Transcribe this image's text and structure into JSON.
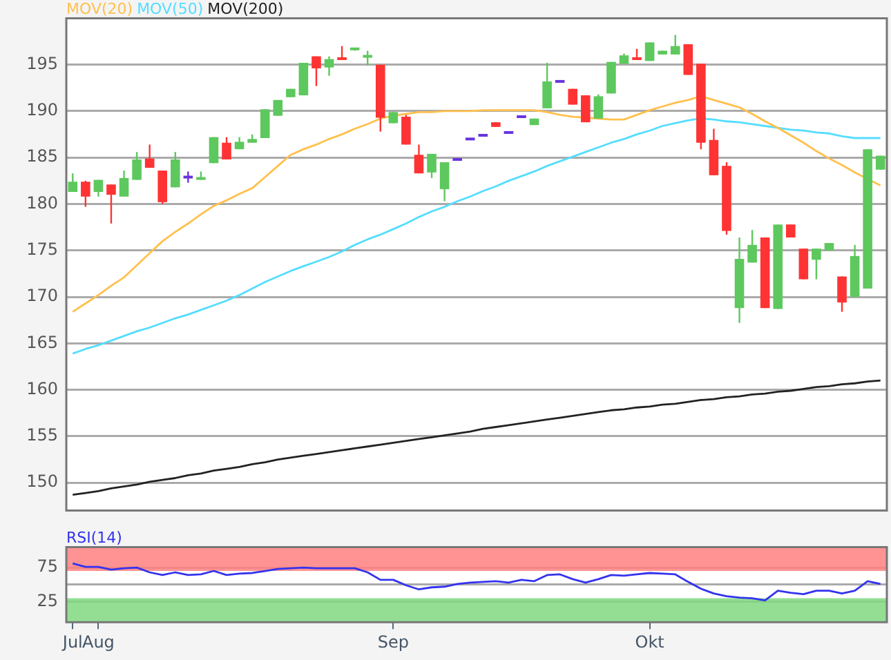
{
  "chart_data": [
    {
      "type": "candlestick",
      "categories": [
        null,
        null,
        null,
        null,
        null,
        null,
        null,
        null,
        null,
        null,
        null,
        null,
        null,
        null,
        null,
        null,
        null,
        null,
        null,
        null,
        null,
        null,
        null,
        null,
        null,
        null,
        null,
        null,
        null,
        null,
        null,
        null,
        null,
        null,
        null,
        null,
        null,
        null,
        null,
        null,
        null,
        null,
        null,
        null,
        null,
        null,
        null,
        null,
        null,
        null,
        null,
        null,
        null,
        null,
        null,
        null,
        null,
        null,
        null,
        null,
        null,
        null,
        null,
        null
      ],
      "ohlc": [
        [
          181.3,
          183.3,
          181.3,
          182.4
        ],
        [
          182.4,
          182.5,
          179.7,
          180.8
        ],
        [
          181.3,
          182.6,
          180.8,
          182.6
        ],
        [
          182.1,
          182.1,
          177.9,
          181.0
        ],
        [
          180.8,
          183.6,
          180.8,
          182.8
        ],
        [
          182.6,
          185.6,
          182.6,
          184.8
        ],
        [
          184.9,
          186.4,
          183.9,
          183.9
        ],
        [
          183.6,
          183.6,
          180.0,
          180.2
        ],
        [
          181.8,
          185.6,
          181.8,
          184.8
        ],
        [
          182.9,
          183.5,
          182.3,
          182.9
        ],
        [
          182.6,
          183.5,
          182.6,
          182.9
        ],
        [
          184.4,
          187.2,
          184.4,
          187.2
        ],
        [
          186.6,
          187.2,
          184.8,
          184.8
        ],
        [
          185.9,
          187.2,
          185.9,
          186.7
        ],
        [
          186.6,
          187.5,
          186.6,
          187.0
        ],
        [
          187.1,
          190.2,
          187.1,
          190.2
        ],
        [
          189.5,
          191.2,
          189.5,
          191.2
        ],
        [
          191.5,
          192.4,
          191.5,
          192.4
        ],
        [
          191.7,
          195.2,
          191.7,
          195.2
        ],
        [
          195.9,
          195.9,
          192.7,
          194.6
        ],
        [
          194.7,
          195.9,
          193.8,
          195.6
        ],
        [
          195.8,
          197.0,
          195.5,
          195.5
        ],
        [
          196.5,
          196.7,
          196.5,
          196.7
        ],
        [
          195.7,
          196.5,
          194.9,
          195.9
        ],
        [
          195.0,
          195.0,
          187.8,
          189.3
        ],
        [
          188.7,
          189.9,
          188.7,
          189.9
        ],
        [
          189.4,
          189.6,
          186.4,
          186.4
        ],
        [
          185.3,
          186.4,
          183.3,
          183.3
        ],
        [
          183.4,
          185.4,
          182.8,
          185.4
        ],
        [
          181.6,
          184.5,
          180.3,
          184.5
        ],
        [
          184.8,
          184.8,
          184.8,
          184.8
        ],
        [
          187.0,
          187.0,
          187.0,
          187.0
        ],
        [
          187.4,
          187.4,
          187.4,
          187.4
        ],
        [
          188.8,
          188.8,
          188.3,
          188.3
        ],
        [
          187.7,
          187.7,
          187.7,
          187.7
        ],
        [
          189.4,
          189.4,
          189.4,
          189.4
        ],
        [
          188.5,
          189.2,
          188.5,
          189.2
        ],
        [
          190.3,
          195.2,
          190.3,
          193.2
        ],
        [
          193.2,
          193.2,
          193.2,
          193.2
        ],
        [
          192.4,
          192.4,
          190.7,
          190.7
        ],
        [
          191.7,
          191.7,
          188.8,
          188.8
        ],
        [
          189.2,
          191.8,
          189.2,
          191.6
        ],
        [
          191.9,
          195.3,
          191.9,
          195.3
        ],
        [
          195.1,
          196.2,
          195.1,
          196.0
        ],
        [
          195.8,
          196.7,
          195.5,
          195.5
        ],
        [
          195.4,
          197.4,
          195.4,
          197.4
        ],
        [
          196.1,
          196.5,
          196.1,
          196.5
        ],
        [
          196.1,
          198.2,
          196.1,
          197.0
        ],
        [
          197.2,
          197.2,
          193.9,
          193.9
        ],
        [
          195.1,
          195.1,
          185.9,
          186.6
        ],
        [
          186.9,
          188.1,
          183.1,
          183.1
        ],
        [
          184.1,
          184.5,
          176.7,
          177.1
        ],
        [
          168.8,
          176.4,
          167.2,
          174.1
        ],
        [
          173.7,
          177.2,
          173.7,
          175.6
        ],
        [
          176.4,
          176.4,
          168.8,
          168.8
        ],
        [
          168.7,
          177.8,
          168.7,
          177.8
        ],
        [
          177.8,
          177.8,
          176.4,
          176.4
        ],
        [
          175.2,
          175.2,
          171.9,
          171.9
        ],
        [
          174.0,
          175.2,
          171.9,
          175.2
        ],
        [
          175.0,
          175.8,
          175.0,
          175.8
        ],
        [
          172.2,
          172.2,
          168.4,
          169.4
        ],
        [
          170.0,
          175.6,
          170.0,
          174.4
        ],
        [
          170.9,
          185.9,
          170.9,
          185.9
        ],
        [
          183.7,
          185.2,
          183.7,
          185.2
        ]
      ],
      "colors": [
        "#5dc85d",
        "#ff3333",
        "#5dc85d",
        "#ff3333",
        "#5dc85d",
        "#5dc85d",
        "#ff3333",
        "#ff3333",
        "#5dc85d",
        "#6633dd",
        "#5dc85d",
        "#5dc85d",
        "#ff3333",
        "#5dc85d",
        "#5dc85d",
        "#5dc85d",
        "#5dc85d",
        "#5dc85d",
        "#5dc85d",
        "#ff3333",
        "#5dc85d",
        "#ff3333",
        "#5dc85d",
        "#5dc85d",
        "#ff3333",
        "#5dc85d",
        "#ff3333",
        "#ff3333",
        "#5dc85d",
        "#5dc85d",
        "#6633dd",
        "#6633dd",
        "#6633dd",
        "#ff3333",
        "#6633dd",
        "#6633dd",
        "#5dc85d",
        "#5dc85d",
        "#6633dd",
        "#ff3333",
        "#ff3333",
        "#5dc85d",
        "#5dc85d",
        "#5dc85d",
        "#ff3333",
        "#5dc85d",
        "#5dc85d",
        "#5dc85d",
        "#ff3333",
        "#ff3333",
        "#ff3333",
        "#ff3333",
        "#5dc85d",
        "#5dc85d",
        "#ff3333",
        "#5dc85d",
        "#ff3333",
        "#ff3333",
        "#5dc85d",
        "#5dc85d",
        "#ff3333",
        "#5dc85d",
        "#5dc85d",
        "#5dc85d"
      ],
      "series": [
        {
          "name": "MOV(20)",
          "type": "line",
          "color": "#ffc04d",
          "values": [
            168.4,
            169.3,
            170.2,
            171.2,
            172.1,
            173.4,
            174.7,
            176.0,
            177.0,
            177.9,
            178.9,
            179.8,
            180.4,
            181.1,
            181.7,
            182.9,
            184.1,
            185.3,
            185.9,
            186.4,
            187.0,
            187.5,
            188.1,
            188.6,
            189.2,
            189.5,
            189.7,
            189.9,
            189.9,
            190.0,
            190.0,
            190.0,
            190.1,
            190.1,
            190.1,
            190.1,
            190.1,
            189.9,
            189.6,
            189.4,
            189.3,
            189.2,
            189.1,
            189.1,
            189.6,
            190.1,
            190.5,
            190.9,
            191.2,
            191.6,
            191.2,
            190.8,
            190.4,
            189.7,
            188.9,
            188.2,
            187.4,
            186.6,
            185.7,
            184.9,
            184.2,
            183.4,
            182.7,
            182.0
          ]
        },
        {
          "name": "MOV(50)",
          "type": "line",
          "color": "#55ddff",
          "values": [
            163.9,
            164.4,
            164.8,
            165.3,
            165.8,
            166.3,
            166.7,
            167.2,
            167.7,
            168.1,
            168.6,
            169.1,
            169.6,
            170.2,
            170.9,
            171.6,
            172.2,
            172.8,
            173.3,
            173.8,
            174.3,
            174.9,
            175.6,
            176.2,
            176.7,
            177.3,
            177.9,
            178.6,
            179.2,
            179.7,
            180.3,
            180.8,
            181.4,
            181.9,
            182.5,
            183.0,
            183.5,
            184.1,
            184.6,
            185.1,
            185.6,
            186.1,
            186.6,
            187.0,
            187.5,
            187.9,
            188.4,
            188.7,
            189.0,
            189.2,
            189.1,
            188.9,
            188.8,
            188.6,
            188.4,
            188.2,
            188.0,
            187.9,
            187.7,
            187.6,
            187.3,
            187.1,
            187.1,
            187.1
          ]
        },
        {
          "name": "MOV(200)",
          "type": "line",
          "color": "#222222",
          "values": [
            148.7,
            148.9,
            149.1,
            149.4,
            149.6,
            149.8,
            150.1,
            150.3,
            150.5,
            150.8,
            151.0,
            151.3,
            151.5,
            151.7,
            152.0,
            152.2,
            152.5,
            152.7,
            152.9,
            153.1,
            153.3,
            153.5,
            153.7,
            153.9,
            154.1,
            154.3,
            154.5,
            154.7,
            154.9,
            155.1,
            155.3,
            155.5,
            155.8,
            156.0,
            156.2,
            156.4,
            156.6,
            156.8,
            157.0,
            157.2,
            157.4,
            157.6,
            157.8,
            157.9,
            158.1,
            158.2,
            158.4,
            158.5,
            158.7,
            158.9,
            159.0,
            159.2,
            159.3,
            159.5,
            159.6,
            159.8,
            159.9,
            160.1,
            160.3,
            160.4,
            160.6,
            160.7,
            160.9,
            161.0
          ]
        }
      ],
      "ylim": [
        147,
        200
      ],
      "yticks": [
        150,
        155,
        160,
        165,
        170,
        175,
        180,
        185,
        190,
        195
      ],
      "grid": "y",
      "tick_labels": "y",
      "legend": "top left"
    },
    {
      "type": "line",
      "title": "RSI(14)",
      "categories": [
        "Jul",
        null,
        "Aug",
        null,
        null,
        null,
        null,
        null,
        null,
        null,
        null,
        null,
        null,
        null,
        null,
        null,
        null,
        null,
        null,
        null,
        null,
        null,
        null,
        null,
        null,
        "Sep",
        null,
        null,
        null,
        null,
        null,
        null,
        null,
        null,
        null,
        null,
        null,
        null,
        null,
        null,
        null,
        null,
        null,
        null,
        null,
        "Okt",
        null,
        null,
        null,
        null,
        null,
        null,
        null,
        null,
        null,
        null,
        null,
        null,
        null,
        null,
        null,
        null,
        null,
        null
      ],
      "series": [
        {
          "color": "#3333ee",
          "values": [
            81,
            76,
            76,
            72,
            74,
            75,
            68,
            64,
            68,
            64,
            65,
            70,
            64,
            66,
            67,
            70,
            73,
            74,
            75,
            74,
            74,
            74,
            74,
            68,
            57,
            57,
            49,
            43,
            46,
            47,
            51,
            53,
            54,
            55,
            53,
            57,
            55,
            64,
            65,
            58,
            53,
            58,
            64,
            63,
            65,
            67,
            66,
            65,
            54,
            44,
            37,
            33,
            31,
            30,
            27,
            41,
            38,
            36,
            41,
            41,
            37,
            41,
            55,
            51
          ]
        }
      ],
      "ylim": [
        -5,
        105
      ],
      "yticks": [
        25,
        {
          "value": 50,
          "label": null
        },
        75
      ],
      "grid": "y",
      "bands": [
        {
          "axis": "y",
          "from": 70,
          "to": 105,
          "color": "#ff8080"
        },
        {
          "axis": "y",
          "from": -5,
          "to": 30,
          "color": "#80d880"
        }
      ]
    }
  ]
}
